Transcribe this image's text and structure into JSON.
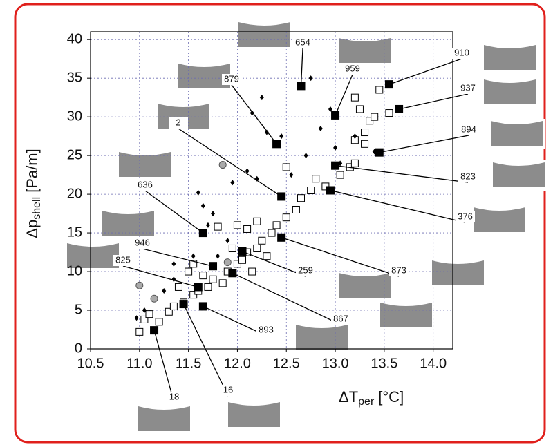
{
  "chart_data": {
    "type": "scatter",
    "x_label": {
      "main": "ΔT",
      "sub": "per",
      "unit": "[°C]"
    },
    "y_label": {
      "main": "Δp",
      "sub": "shell",
      "unit": "[Pa/m]"
    },
    "xlim": [
      10.5,
      14.2
    ],
    "ylim": [
      0,
      41
    ],
    "xticks": [
      10.5,
      {
        "value": 11,
        "label": "11.0"
      },
      11.5,
      {
        "value": 12,
        "label": "12.0"
      },
      12.5,
      {
        "value": 13,
        "label": "13.0"
      },
      13.5,
      {
        "value": 14,
        "label": "14.0"
      }
    ],
    "yticks": [
      0,
      5,
      10,
      15,
      20,
      25,
      30,
      35,
      40
    ],
    "grid": true,
    "series": [
      {
        "marker": "open-square",
        "color": "#000000",
        "x": [
          11.0,
          11.05,
          11.1,
          11.2,
          11.3,
          11.35,
          11.45,
          11.55,
          11.6,
          11.7,
          11.75,
          11.85,
          11.9,
          12.0,
          12.05,
          12.1,
          12.2,
          12.25,
          12.35,
          12.4,
          12.3,
          12.1,
          12.2,
          12.5,
          12.6,
          12.65,
          12.75,
          12.8,
          12.9,
          13.05,
          13.15,
          13.2,
          12.5,
          13.2,
          13.3,
          13.35,
          13.4,
          13.25,
          13.2,
          13.45,
          13.55,
          13.3,
          12.0,
          11.8,
          11.95,
          12.15,
          11.5,
          11.65,
          11.4,
          11.55
        ],
        "values": [
          2.2,
          3.8,
          4.5,
          3.5,
          4.8,
          5.5,
          6,
          7,
          7.5,
          8,
          9,
          8.5,
          10,
          11,
          11.5,
          12.5,
          13,
          14,
          15,
          16,
          12,
          15.5,
          16.5,
          17,
          18,
          19.5,
          20.5,
          22,
          21,
          22.5,
          23.5,
          24,
          23.5,
          27,
          28,
          29.5,
          30,
          31,
          32.5,
          33.5,
          30.5,
          26.5,
          16,
          15.8,
          13,
          10,
          10,
          9.5,
          8,
          11
        ]
      },
      {
        "marker": "diamond",
        "color": "#000000",
        "x": [
          10.97,
          11.05,
          11.15,
          11.25,
          11.35,
          11.45,
          11.55,
          11.6,
          11.65,
          11.75,
          11.8,
          11.9,
          11.95,
          12.1,
          12.2,
          12.25,
          12.15,
          12.3,
          12.45,
          12.55,
          12.7,
          12.75,
          12.85,
          12.95,
          13.0,
          13.05,
          13.2,
          13.4,
          11.35,
          11.7
        ],
        "values": [
          4,
          5,
          6.5,
          7.5,
          9,
          6,
          12,
          20.2,
          18.5,
          17.5,
          12,
          14,
          21.5,
          23,
          22,
          32.5,
          30.5,
          28,
          27.5,
          22.5,
          25,
          35,
          28.5,
          31,
          26,
          24,
          27.5,
          25.5,
          11,
          16
        ]
      },
      {
        "marker": "circle",
        "color": "#aaaaaa",
        "x": [
          11.0,
          11.15,
          11.85,
          11.9
        ],
        "values": [
          8.2,
          6.5,
          23.8,
          11.2
        ]
      },
      {
        "marker": "filled-square",
        "color": "#000000",
        "labels": [
          "654",
          "959",
          "910",
          "937",
          "894",
          "823",
          "376",
          "879",
          "2",
          "636",
          "873",
          "946",
          "259",
          "825",
          "867",
          "893",
          "16",
          "18"
        ],
        "x": [
          12.65,
          13.0,
          13.55,
          13.65,
          13.45,
          13.0,
          12.95,
          12.4,
          12.45,
          11.65,
          12.45,
          11.75,
          12.05,
          11.6,
          11.95,
          11.65,
          11.45,
          11.15
        ],
        "values": [
          34,
          30.2,
          34.2,
          31,
          25.4,
          23.7,
          20.5,
          26.5,
          19.7,
          15,
          14.4,
          10.7,
          12.6,
          8,
          9.8,
          5.5,
          5.8,
          2.4
        ]
      }
    ]
  }
}
